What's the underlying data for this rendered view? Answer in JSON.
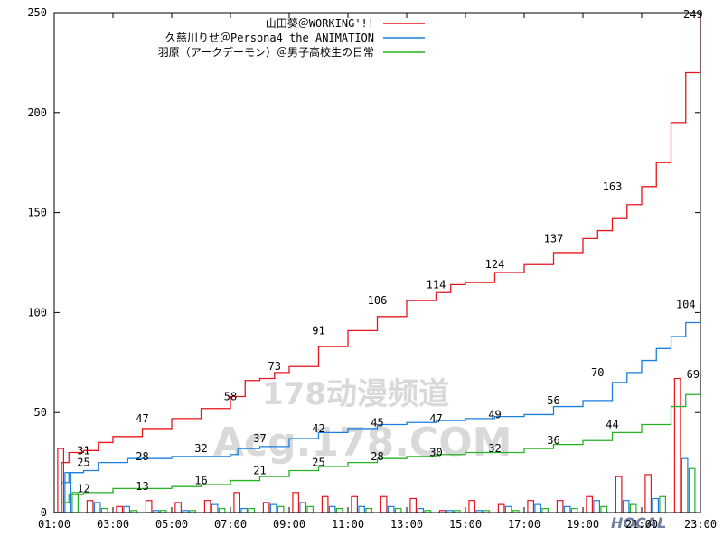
{
  "chart_data": {
    "type": "line",
    "xlim": [
      "01:00",
      "23:00"
    ],
    "ylim": [
      0,
      250
    ],
    "x_ticks": [
      "01:00",
      "03:00",
      "05:00",
      "07:00",
      "09:00",
      "11:00",
      "13:00",
      "15:00",
      "17:00",
      "19:00",
      "21:00",
      "23:00"
    ],
    "y_ticks": [
      0,
      50,
      100,
      150,
      200,
      250
    ],
    "grid": false,
    "legend_position": "top-right",
    "series": [
      {
        "name": "山田葵＠WORKING'!!",
        "color": "#e8141c",
        "points": [
          [
            "01:00",
            0
          ],
          [
            "01:15",
            25
          ],
          [
            "01:30",
            30
          ],
          [
            "02:00",
            31
          ],
          [
            "02:30",
            35
          ],
          [
            "03:00",
            38
          ],
          [
            "04:00",
            42
          ],
          [
            "05:00",
            47
          ],
          [
            "06:00",
            52
          ],
          [
            "07:00",
            58
          ],
          [
            "07:30",
            66
          ],
          [
            "08:00",
            67
          ],
          [
            "08:30",
            70
          ],
          [
            "09:00",
            73
          ],
          [
            "10:00",
            83
          ],
          [
            "11:00",
            91
          ],
          [
            "12:00",
            98
          ],
          [
            "13:00",
            106
          ],
          [
            "14:00",
            110
          ],
          [
            "14:30",
            114
          ],
          [
            "15:00",
            115
          ],
          [
            "16:00",
            120
          ],
          [
            "17:00",
            124
          ],
          [
            "18:00",
            130
          ],
          [
            "19:00",
            137
          ],
          [
            "19:30",
            141
          ],
          [
            "20:00",
            147
          ],
          [
            "20:30",
            154
          ],
          [
            "21:00",
            163
          ],
          [
            "21:30",
            175
          ],
          [
            "22:00",
            195
          ],
          [
            "22:30",
            220
          ],
          [
            "23:00",
            249
          ]
        ],
        "labels": [
          [
            "02:00",
            31
          ],
          [
            "04:00",
            47
          ],
          [
            "07:00",
            58
          ],
          [
            "08:30",
            73
          ],
          [
            "10:00",
            91
          ],
          [
            "12:00",
            106
          ],
          [
            "14:00",
            114
          ],
          [
            "16:00",
            124
          ],
          [
            "18:00",
            137
          ],
          [
            "20:00",
            163
          ],
          [
            "22:45",
            249
          ]
        ]
      },
      {
        "name": "久慈川りせ＠Persona4 the ANIMATION",
        "color": "#1a7fe0",
        "points": [
          [
            "01:00",
            0
          ],
          [
            "01:15",
            15
          ],
          [
            "01:30",
            20
          ],
          [
            "02:00",
            21
          ],
          [
            "02:30",
            25
          ],
          [
            "03:30",
            27
          ],
          [
            "05:00",
            28
          ],
          [
            "06:00",
            28
          ],
          [
            "07:00",
            29
          ],
          [
            "07:15",
            32
          ],
          [
            "08:00",
            33
          ],
          [
            "09:00",
            37
          ],
          [
            "10:00",
            40
          ],
          [
            "11:00",
            42
          ],
          [
            "12:00",
            44
          ],
          [
            "13:00",
            45
          ],
          [
            "14:00",
            46
          ],
          [
            "15:00",
            47
          ],
          [
            "16:00",
            48
          ],
          [
            "17:00",
            49
          ],
          [
            "18:00",
            53
          ],
          [
            "19:00",
            56
          ],
          [
            "20:00",
            65
          ],
          [
            "20:30",
            70
          ],
          [
            "21:00",
            76
          ],
          [
            "21:30",
            82
          ],
          [
            "22:00",
            88
          ],
          [
            "22:30",
            95
          ],
          [
            "23:00",
            104
          ]
        ],
        "labels": [
          [
            "02:00",
            25
          ],
          [
            "04:00",
            28
          ],
          [
            "06:00",
            32
          ],
          [
            "08:00",
            37
          ],
          [
            "10:00",
            42
          ],
          [
            "12:00",
            45
          ],
          [
            "14:00",
            47
          ],
          [
            "16:00",
            49
          ],
          [
            "18:00",
            56
          ],
          [
            "19:30",
            70
          ],
          [
            "22:30",
            104
          ]
        ]
      },
      {
        "name": "羽原（アークデーモン）＠男子高校生の日常",
        "color": "#23b323",
        "points": [
          [
            "01:00",
            0
          ],
          [
            "01:15",
            5
          ],
          [
            "01:30",
            9
          ],
          [
            "02:00",
            10
          ],
          [
            "03:00",
            12
          ],
          [
            "05:00",
            13
          ],
          [
            "06:00",
            14
          ],
          [
            "07:00",
            16
          ],
          [
            "08:00",
            18
          ],
          [
            "09:00",
            21
          ],
          [
            "10:00",
            23
          ],
          [
            "11:00",
            25
          ],
          [
            "12:00",
            27
          ],
          [
            "13:00",
            28
          ],
          [
            "14:00",
            29
          ],
          [
            "15:00",
            30
          ],
          [
            "16:00",
            30
          ],
          [
            "17:00",
            32
          ],
          [
            "18:00",
            34
          ],
          [
            "19:00",
            36
          ],
          [
            "20:00",
            40
          ],
          [
            "21:00",
            44
          ],
          [
            "22:00",
            53
          ],
          [
            "22:30",
            59
          ],
          [
            "23:00",
            69
          ]
        ],
        "labels": [
          [
            "02:00",
            12
          ],
          [
            "04:00",
            13
          ],
          [
            "06:00",
            16
          ],
          [
            "08:00",
            21
          ],
          [
            "10:00",
            25
          ],
          [
            "12:00",
            28
          ],
          [
            "14:00",
            30
          ],
          [
            "16:00",
            32
          ],
          [
            "18:00",
            36
          ],
          [
            "20:00",
            44
          ],
          [
            "22:45",
            69
          ]
        ]
      }
    ],
    "bars": {
      "categories": [
        "01:00",
        "02:00",
        "03:00",
        "04:00",
        "05:00",
        "06:00",
        "07:00",
        "08:00",
        "09:00",
        "10:00",
        "11:00",
        "12:00",
        "13:00",
        "14:00",
        "15:00",
        "16:00",
        "17:00",
        "18:00",
        "19:00",
        "20:00",
        "21:00",
        "22:00"
      ],
      "series": [
        {
          "name": "山田葵＠WORKING'!!",
          "color": "#e8141c",
          "values": [
            32,
            6,
            3,
            6,
            5,
            6,
            10,
            5,
            10,
            8,
            8,
            8,
            7,
            1,
            6,
            4,
            6,
            6,
            8,
            18,
            19,
            67
          ]
        },
        {
          "name": "久慈川りせ＠Persona4 the ANIMATION",
          "color": "#1a7fe0",
          "values": [
            20,
            5,
            3,
            1,
            1,
            4,
            2,
            4,
            5,
            3,
            3,
            3,
            2,
            1,
            1,
            3,
            4,
            3,
            6,
            6,
            7,
            27
          ]
        },
        {
          "name": "羽原（アークデーモン）＠男子高校生の日常",
          "color": "#23b323",
          "values": [
            10,
            2,
            1,
            1,
            1,
            2,
            2,
            3,
            3,
            2,
            2,
            2,
            1,
            1,
            1,
            1,
            2,
            2,
            3,
            4,
            8,
            22
          ]
        }
      ]
    }
  },
  "watermarks": {
    "line1": "178动漫频道",
    "line2": "Acg.178.COM",
    "corner": "HOCAL"
  }
}
